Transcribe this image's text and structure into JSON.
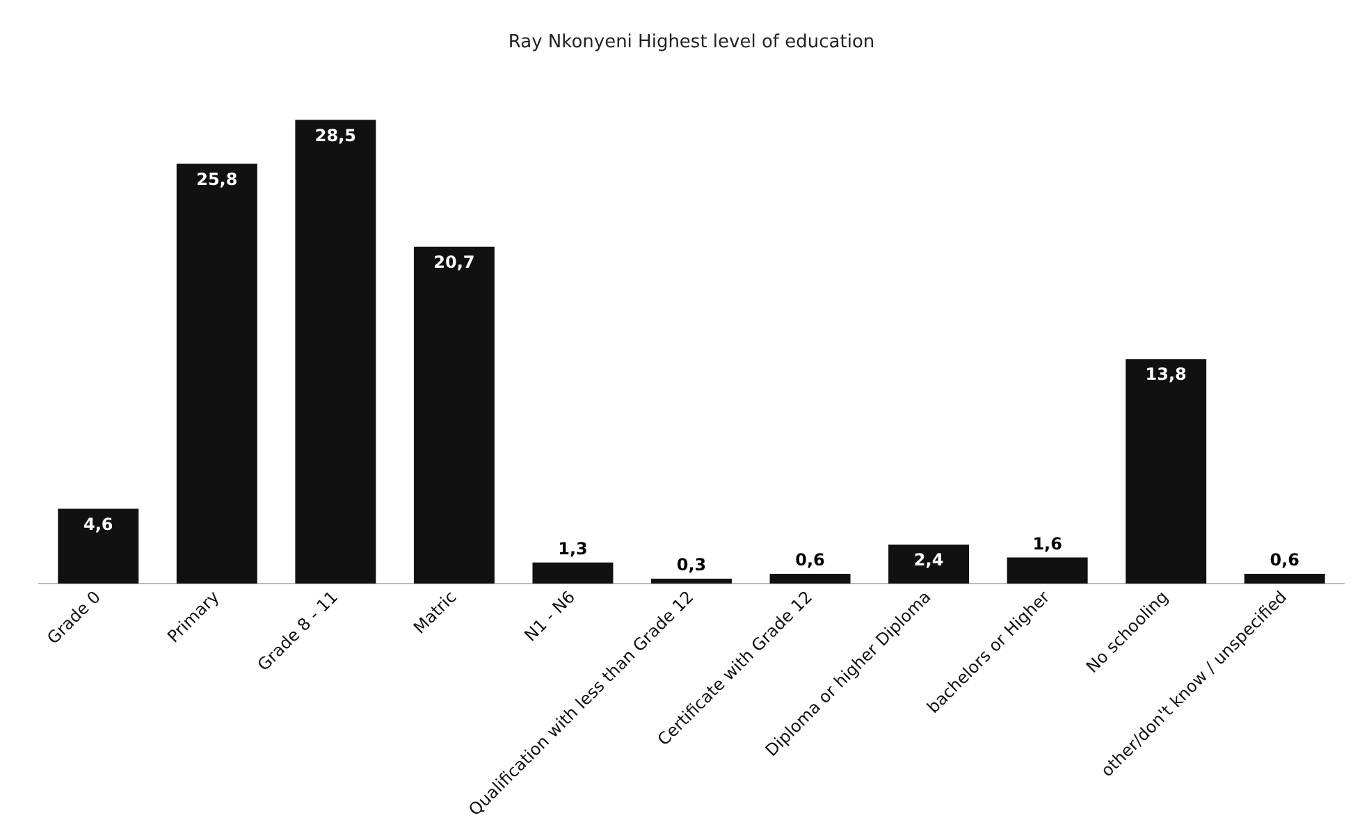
{
  "chart_data": {
    "type": "bar",
    "title": "Ray Nkonyeni Highest level of education",
    "categories": [
      "Grade 0",
      "Primary",
      "Grade 8 - 11",
      "Matric",
      "N1 - N6",
      "Qualification with less than Grade 12",
      "Certificate with Grade 12",
      "Diploma or higher Diploma",
      "bachelors or Higher",
      "No schooling",
      "other/don't know / unspecified"
    ],
    "values": [
      4.6,
      25.8,
      28.5,
      20.7,
      1.3,
      0.3,
      0.6,
      2.4,
      1.6,
      13.8,
      0.6
    ],
    "value_labels": [
      "4,6",
      "25,8",
      "28,5",
      "20,7",
      "1,3",
      "0,3",
      "0,6",
      "2,4",
      "1,6",
      "13,8",
      "0,6"
    ],
    "color": "#111111",
    "legend": false,
    "grid": false
  }
}
